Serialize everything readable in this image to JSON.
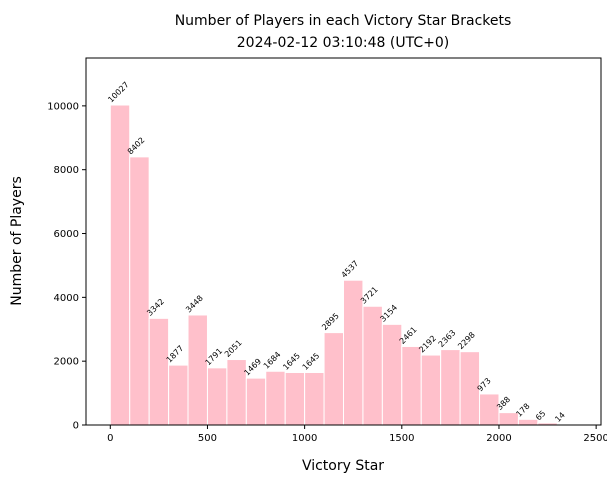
{
  "chart_data": {
    "type": "bar",
    "title": "Number of Players in each Victory Star Brackets",
    "subtitle": "2024-02-12 03:10:48 (UTC+0)",
    "xlabel": "Victory Star",
    "ylabel": "Number of Players",
    "bin_width": 100,
    "bins_start": [
      0,
      100,
      200,
      300,
      400,
      500,
      600,
      700,
      800,
      900,
      1000,
      1100,
      1200,
      1300,
      1400,
      1500,
      1600,
      1700,
      1800,
      1900,
      2000,
      2100,
      2200,
      2300
    ],
    "values": [
      10027,
      8402,
      3342,
      1877,
      3448,
      1791,
      2051,
      1469,
      1684,
      1645,
      1645,
      2895,
      4537,
      3721,
      3154,
      2461,
      2192,
      2363,
      2298,
      973,
      388,
      178,
      65,
      14
    ],
    "xlim": [
      -125,
      2525
    ],
    "ylim": [
      0,
      11500
    ],
    "xticks": [
      0,
      500,
      1000,
      1500,
      2000,
      2500
    ],
    "yticks": [
      0,
      2000,
      4000,
      6000,
      8000,
      10000
    ],
    "bar_color": "#ffc0cb",
    "bar_edge_color": "#ffffff",
    "grid": false,
    "legend": "none"
  }
}
